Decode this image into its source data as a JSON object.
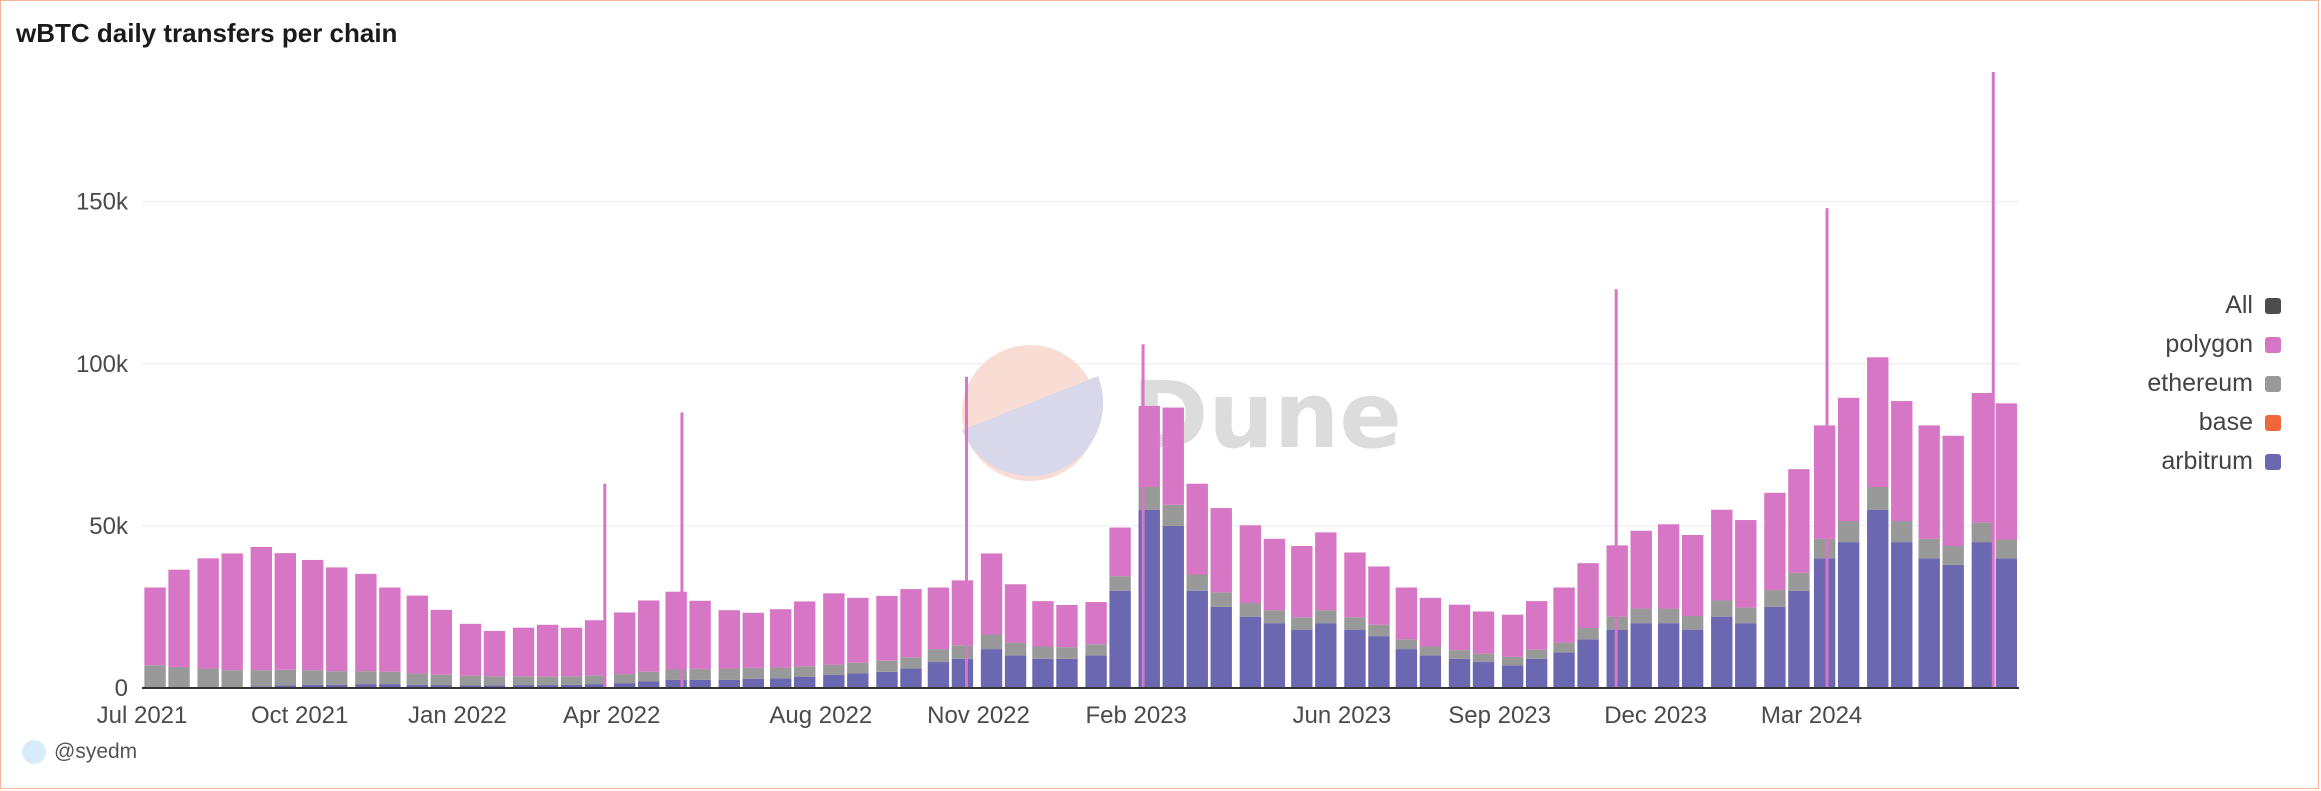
{
  "title": "wBTC daily transfers per chain",
  "author": "@syedm",
  "watermark": "Dune",
  "colors": {
    "All": "#4d4d4d",
    "polygon": "#d876c6",
    "ethereum": "#999999",
    "base": "#f2663b",
    "arbitrum": "#6b67b0",
    "grid": "#ececec",
    "frame": "#f2b49a"
  },
  "legend": [
    {
      "label": "All",
      "color": "#4d4d4d"
    },
    {
      "label": "polygon",
      "color": "#d876c6"
    },
    {
      "label": "ethereum",
      "color": "#999999"
    },
    {
      "label": "base",
      "color": "#f2663b"
    },
    {
      "label": "arbitrum",
      "color": "#6b67b0"
    }
  ],
  "chart_data": {
    "type": "bar",
    "stacked": true,
    "title": "wBTC daily transfers per chain",
    "xlabel": "",
    "ylabel": "",
    "ylim": [
      0,
      190000
    ],
    "y_ticks": [
      "0",
      "50k",
      "100k",
      "150k"
    ],
    "y_tick_values": [
      0,
      50000,
      100000,
      150000
    ],
    "x_ticks": [
      "Jul 2021",
      "Oct 2021",
      "Jan 2022",
      "Apr 2022",
      "Aug 2022",
      "Nov 2022",
      "Feb 2023",
      "Jun 2023",
      "Sep 2023",
      "Dec 2023",
      "Mar 2024"
    ],
    "x_tick_dates": [
      "2021-07-01",
      "2021-10-01",
      "2022-01-01",
      "2022-04-01",
      "2022-08-01",
      "2022-11-01",
      "2023-02-01",
      "2023-06-01",
      "2023-09-01",
      "2023-12-01",
      "2024-03-01"
    ],
    "x_range": [
      "2021-07-01",
      "2024-06-30"
    ],
    "grid": true,
    "legend_position": "right",
    "bar_interval": "weekly sample of daily values (approximate)",
    "x": [
      "2021-07-01",
      "2021-07-15",
      "2021-08-01",
      "2021-08-15",
      "2021-09-01",
      "2021-09-15",
      "2021-10-01",
      "2021-10-15",
      "2021-11-01",
      "2021-11-15",
      "2021-12-01",
      "2021-12-15",
      "2022-01-01",
      "2022-01-15",
      "2022-02-01",
      "2022-02-15",
      "2022-03-01",
      "2022-03-15",
      "2022-04-01",
      "2022-04-15",
      "2022-05-01",
      "2022-05-15",
      "2022-06-01",
      "2022-06-15",
      "2022-07-01",
      "2022-07-15",
      "2022-08-01",
      "2022-08-15",
      "2022-09-01",
      "2022-09-15",
      "2022-10-01",
      "2022-10-15",
      "2022-11-01",
      "2022-11-15",
      "2022-12-01",
      "2022-12-15",
      "2023-01-01",
      "2023-01-15",
      "2023-02-01",
      "2023-02-15",
      "2023-03-01",
      "2023-03-15",
      "2023-04-01",
      "2023-04-15",
      "2023-05-01",
      "2023-05-15",
      "2023-06-01",
      "2023-06-15",
      "2023-07-01",
      "2023-07-15",
      "2023-08-01",
      "2023-08-15",
      "2023-09-01",
      "2023-09-15",
      "2023-10-01",
      "2023-10-15",
      "2023-11-01",
      "2023-11-15",
      "2023-12-01",
      "2023-12-15",
      "2024-01-01",
      "2024-01-15",
      "2024-02-01",
      "2024-02-15",
      "2024-03-01",
      "2024-03-15",
      "2024-04-01",
      "2024-04-15",
      "2024-05-01",
      "2024-05-15",
      "2024-06-01",
      "2024-06-15"
    ],
    "series": [
      {
        "name": "arbitrum",
        "values": [
          0,
          0,
          0,
          0,
          500,
          800,
          1000,
          1000,
          1200,
          1200,
          1000,
          900,
          800,
          800,
          900,
          900,
          1000,
          1200,
          1500,
          2000,
          2500,
          2500,
          2500,
          2800,
          3000,
          3500,
          4000,
          4500,
          5000,
          6000,
          8000,
          9000,
          12000,
          10000,
          9000,
          9000,
          10000,
          30000,
          55000,
          50000,
          30000,
          25000,
          22000,
          20000,
          18000,
          20000,
          18000,
          16000,
          12000,
          10000,
          9000,
          8000,
          7000,
          9000,
          11000,
          15000,
          18000,
          20000,
          20000,
          18000,
          22000,
          20000,
          25000,
          30000,
          40000,
          45000,
          55000,
          45000,
          40000,
          38000,
          45000,
          40000
        ]
      },
      {
        "name": "base",
        "values": [
          0,
          0,
          0,
          0,
          0,
          0,
          0,
          0,
          0,
          0,
          0,
          0,
          0,
          0,
          0,
          0,
          0,
          0,
          0,
          0,
          0,
          0,
          0,
          0,
          0,
          0,
          0,
          0,
          0,
          0,
          0,
          0,
          0,
          0,
          0,
          0,
          0,
          0,
          0,
          0,
          0,
          0,
          0,
          0,
          0,
          0,
          0,
          0,
          0,
          0,
          0,
          0,
          0,
          0,
          0,
          0,
          0,
          0,
          0,
          0,
          0,
          0,
          0,
          0,
          0,
          0,
          0,
          0,
          0,
          0,
          0,
          0
        ]
      },
      {
        "name": "ethereum",
        "values": [
          7000,
          6500,
          6000,
          5500,
          5000,
          4800,
          4500,
          4200,
          4000,
          3800,
          3500,
          3200,
          3000,
          2800,
          2700,
          2600,
          2600,
          2700,
          2800,
          3000,
          3200,
          3400,
          3500,
          3400,
          3300,
          3200,
          3200,
          3300,
          3400,
          3500,
          4000,
          4200,
          4500,
          4000,
          3800,
          3600,
          3500,
          4500,
          7000,
          6500,
          5000,
          4500,
          4200,
          4000,
          3800,
          4000,
          3800,
          3500,
          3000,
          2800,
          2700,
          2600,
          2600,
          2800,
          3000,
          3500,
          4000,
          4500,
          4500,
          4200,
          5000,
          4800,
          5200,
          5500,
          6000,
          6500,
          7000,
          6500,
          6000,
          5800,
          6000,
          5800
        ]
      },
      {
        "name": "polygon",
        "values": [
          24000,
          30000,
          34000,
          36000,
          38000,
          36000,
          34000,
          32000,
          30000,
          26000,
          24000,
          20000,
          16000,
          14000,
          15000,
          16000,
          15000,
          17000,
          19000,
          22000,
          24000,
          21000,
          18000,
          17000,
          18000,
          20000,
          22000,
          20000,
          20000,
          21000,
          19000,
          20000,
          25000,
          18000,
          14000,
          13000,
          13000,
          15000,
          25000,
          30000,
          28000,
          26000,
          24000,
          22000,
          22000,
          24000,
          20000,
          18000,
          16000,
          15000,
          14000,
          13000,
          13000,
          15000,
          17000,
          20000,
          22000,
          24000,
          26000,
          25000,
          28000,
          27000,
          30000,
          32000,
          35000,
          38000,
          40000,
          37000,
          35000,
          34000,
          40000,
          42000
        ]
      }
    ],
    "peaks": [
      {
        "x": "2022-03-28",
        "total": 63000
      },
      {
        "x": "2022-05-12",
        "total": 85000
      },
      {
        "x": "2022-10-25",
        "total": 96000
      },
      {
        "x": "2023-02-05",
        "total": 106000
      },
      {
        "x": "2023-11-08",
        "total": 123000
      },
      {
        "x": "2024-03-10",
        "total": 148000
      },
      {
        "x": "2024-06-15",
        "total": 190000
      }
    ]
  }
}
